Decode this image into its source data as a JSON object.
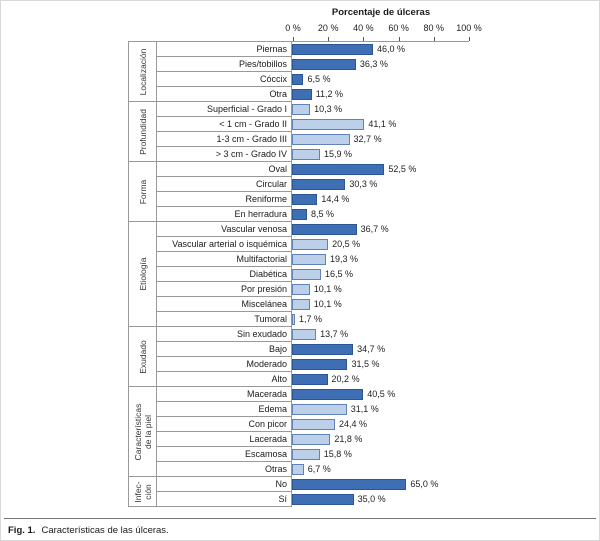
{
  "chart_data": {
    "type": "bar",
    "orientation": "horizontal",
    "title": "Porcentaje de úlceras",
    "axis": {
      "ticks": [
        "0 %",
        "20 %",
        "40 %",
        "60 %",
        "80 %",
        "100 %"
      ],
      "tick_values": [
        0,
        20,
        40,
        60,
        80,
        100
      ],
      "xlim": [
        0,
        100
      ],
      "grid": "off",
      "position": "top"
    },
    "colors": {
      "dark": "#3E6EB4",
      "dark_border": "#2C5693",
      "light": "#BCD0EA",
      "light_border": "#5F83B8",
      "grid": "#999999"
    },
    "groups": [
      {
        "label": "Localización",
        "items": [
          {
            "label": "Piernas",
            "value": 46.0,
            "display": "46,0 %",
            "shade": "dark"
          },
          {
            "label": "Pies/tobillos",
            "value": 36.3,
            "display": "36,3 %",
            "shade": "dark"
          },
          {
            "label": "Cóccix",
            "value": 6.5,
            "display": "6,5 %",
            "shade": "dark"
          },
          {
            "label": "Otra",
            "value": 11.2,
            "display": "11,2 %",
            "shade": "dark"
          }
        ]
      },
      {
        "label": "Profundidad",
        "items": [
          {
            "label": "Superficial - Grado I",
            "value": 10.3,
            "display": "10,3 %",
            "shade": "light"
          },
          {
            "label": "< 1 cm - Grado II",
            "value": 41.1,
            "display": "41,1 %",
            "shade": "light"
          },
          {
            "label": "1-3 cm - Grado III",
            "value": 32.7,
            "display": "32,7 %",
            "shade": "light"
          },
          {
            "label": "> 3 cm - Grado IV",
            "value": 15.9,
            "display": "15,9 %",
            "shade": "light"
          }
        ]
      },
      {
        "label": "Forma",
        "items": [
          {
            "label": "Oval",
            "value": 52.5,
            "display": "52,5 %",
            "shade": "dark"
          },
          {
            "label": "Circular",
            "value": 30.3,
            "display": "30,3 %",
            "shade": "dark"
          },
          {
            "label": "Reniforme",
            "value": 14.4,
            "display": "14,4 %",
            "shade": "dark"
          },
          {
            "label": "En herradura",
            "value": 8.5,
            "display": "8,5 %",
            "shade": "dark"
          }
        ]
      },
      {
        "label": "Etiología",
        "items": [
          {
            "label": "Vascular venosa",
            "value": 36.7,
            "display": "36,7 %",
            "shade": "dark"
          },
          {
            "label": "Vascular arterial o isquémica",
            "value": 20.5,
            "display": "20,5 %",
            "shade": "light"
          },
          {
            "label": "Multifactorial",
            "value": 19.3,
            "display": "19,3 %",
            "shade": "light"
          },
          {
            "label": "Diabética",
            "value": 16.5,
            "display": "16,5 %",
            "shade": "light"
          },
          {
            "label": "Por presión",
            "value": 10.1,
            "display": "10,1 %",
            "shade": "light"
          },
          {
            "label": "Miscelánea",
            "value": 10.1,
            "display": "10,1 %",
            "shade": "light"
          },
          {
            "label": "Tumoral",
            "value": 1.7,
            "display": "1,7 %",
            "shade": "light"
          }
        ]
      },
      {
        "label": "Exudado",
        "items": [
          {
            "label": "Sin exudado",
            "value": 13.7,
            "display": "13,7 %",
            "shade": "light"
          },
          {
            "label": "Bajo",
            "value": 34.7,
            "display": "34,7 %",
            "shade": "dark"
          },
          {
            "label": "Moderado",
            "value": 31.5,
            "display": "31,5 %",
            "shade": "dark"
          },
          {
            "label": "Alto",
            "value": 20.2,
            "display": "20,2 %",
            "shade": "dark"
          }
        ]
      },
      {
        "label": "Características\nde la piel",
        "items": [
          {
            "label": "Macerada",
            "value": 40.5,
            "display": "40,5 %",
            "shade": "dark"
          },
          {
            "label": "Edema",
            "value": 31.1,
            "display": "31,1 %",
            "shade": "light"
          },
          {
            "label": "Con picor",
            "value": 24.4,
            "display": "24,4 %",
            "shade": "light"
          },
          {
            "label": "Lacerada",
            "value": 21.8,
            "display": "21,8 %",
            "shade": "light"
          },
          {
            "label": "Escamosa",
            "value": 15.8,
            "display": "15,8 %",
            "shade": "light"
          },
          {
            "label": "Otras",
            "value": 6.7,
            "display": "6,7 %",
            "shade": "light"
          }
        ]
      },
      {
        "label": "Infec-\nción",
        "items": [
          {
            "label": "No",
            "value": 65.0,
            "display": "65,0 %",
            "shade": "dark"
          },
          {
            "label": "Sí",
            "value": 35.0,
            "display": "35,0 %",
            "shade": "dark"
          }
        ]
      }
    ]
  },
  "caption": {
    "label": "Fig. 1.",
    "text": "Características de las úlceras."
  }
}
